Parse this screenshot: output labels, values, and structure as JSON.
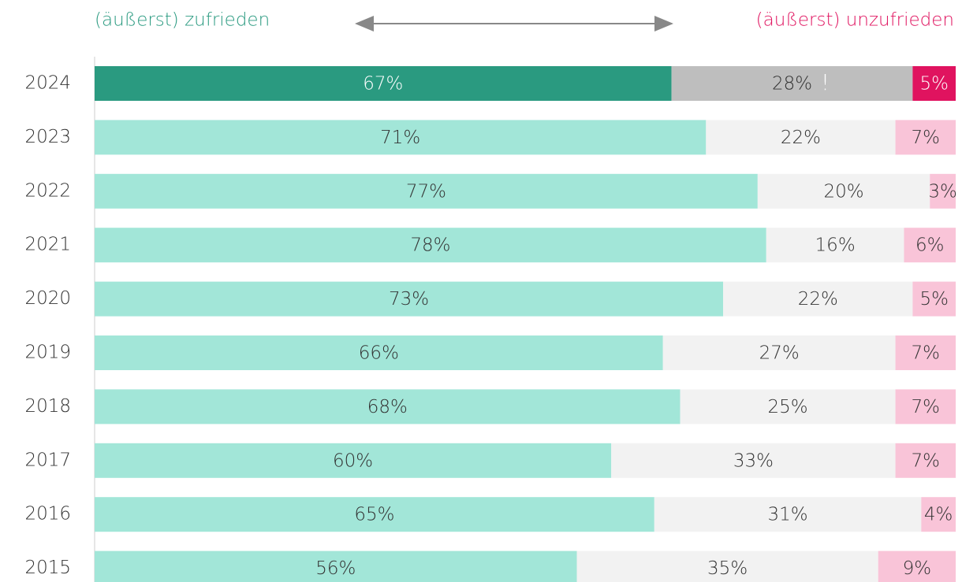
{
  "chart_data": {
    "type": "stacked-bar-horizontal",
    "legend_left": "(äußerst) zufrieden",
    "legend_right": "(äußerst) unzufrieden",
    "legend_left_color": "#2a9a80",
    "legend_right_color": "#e0135f",
    "annotation": "!",
    "categories": [
      "2024",
      "2023",
      "2022",
      "2021",
      "2020",
      "2019",
      "2018",
      "2017",
      "2016",
      "2015"
    ],
    "xlim": [
      0,
      100
    ],
    "series": [
      {
        "name": "(äußerst) zufrieden",
        "color": "#a2e6d8",
        "colors": [
          "#2a9a80",
          "#a2e6d8",
          "#a2e6d8",
          "#a2e6d8",
          "#a2e6d8",
          "#a2e6d8",
          "#a2e6d8",
          "#a2e6d8",
          "#a2e6d8",
          "#a2e6d8"
        ],
        "values": [
          67,
          71,
          77,
          78,
          73,
          66,
          68,
          60,
          65,
          56
        ],
        "value_labels": [
          "67%",
          "71%",
          "77%",
          "78%",
          "73%",
          "66%",
          "68%",
          "60%",
          "65%",
          "56%"
        ]
      },
      {
        "color": "#f2f2f2",
        "colors": [
          "#bebebe",
          "#f2f2f2",
          "#f2f2f2",
          "#f2f2f2",
          "#f2f2f2",
          "#f2f2f2",
          "#f2f2f2",
          "#f2f2f2",
          "#f2f2f2",
          "#f2f2f2"
        ],
        "values": [
          28,
          22,
          20,
          16,
          22,
          27,
          25,
          33,
          31,
          35
        ],
        "value_labels": [
          "28%",
          "22%",
          "20%",
          "16%",
          "22%",
          "27%",
          "25%",
          "33%",
          "31%",
          "35%"
        ]
      },
      {
        "name": "(äußerst) unzufrieden",
        "color": "#f9c4d8",
        "colors": [
          "#e0135f",
          "#f9c4d8",
          "#f9c4d8",
          "#f9c4d8",
          "#f9c4d8",
          "#f9c4d8",
          "#f9c4d8",
          "#f9c4d8",
          "#f9c4d8",
          "#f9c4d8"
        ],
        "values": [
          5,
          7,
          3,
          6,
          5,
          7,
          7,
          7,
          4,
          9
        ],
        "value_labels": [
          "5%",
          "7%",
          "3%",
          "6%",
          "5%",
          "7%",
          "7%",
          "7%",
          "4%",
          "9%"
        ]
      }
    ]
  }
}
